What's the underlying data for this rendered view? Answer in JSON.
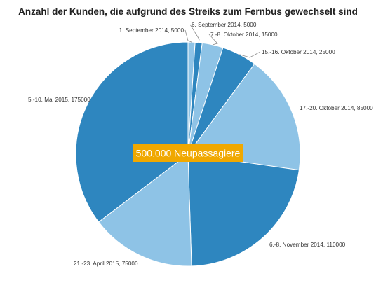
{
  "chart_data": {
    "type": "pie",
    "title": "Anzahl der Kunden, die aufgrund des Streiks zum Fernbus gewechselt sind",
    "categories": [
      "1. September 2014",
      "6. September 2014",
      "7.-8. Oktober 2014",
      "15.-16. Oktober 2014",
      "17.-20. Oktober 2014",
      "6.-8. November 2014",
      "21.-23. April 2015",
      "5.-10. Mai 2015"
    ],
    "values": [
      5000,
      5000,
      15000,
      25000,
      85000,
      110000,
      75000,
      175000
    ],
    "labels": [
      "1. September 2014, 5000",
      "6. September 2014, 5000",
      "7.-8. Oktober 2014, 15000",
      "15.-16. Oktober 2014, 25000",
      "17.-20. Oktober 2014, 85000",
      "6.-8. November 2014, 110000",
      "21.-23. April 2015, 75000",
      "5.-10. Mai 2015, 175000"
    ],
    "colors": [
      "#8ec3e6",
      "#2e86bf",
      "#8ec3e6",
      "#2e86bf",
      "#8ec3e6",
      "#2e86bf",
      "#8ec3e6",
      "#2e86bf"
    ],
    "start_angle_deg": 0,
    "direction": "clockwise",
    "annotation": {
      "text": "500.000 Neupassagiere",
      "background": "#f0a800",
      "color": "#ffffff"
    },
    "legend": "none"
  }
}
